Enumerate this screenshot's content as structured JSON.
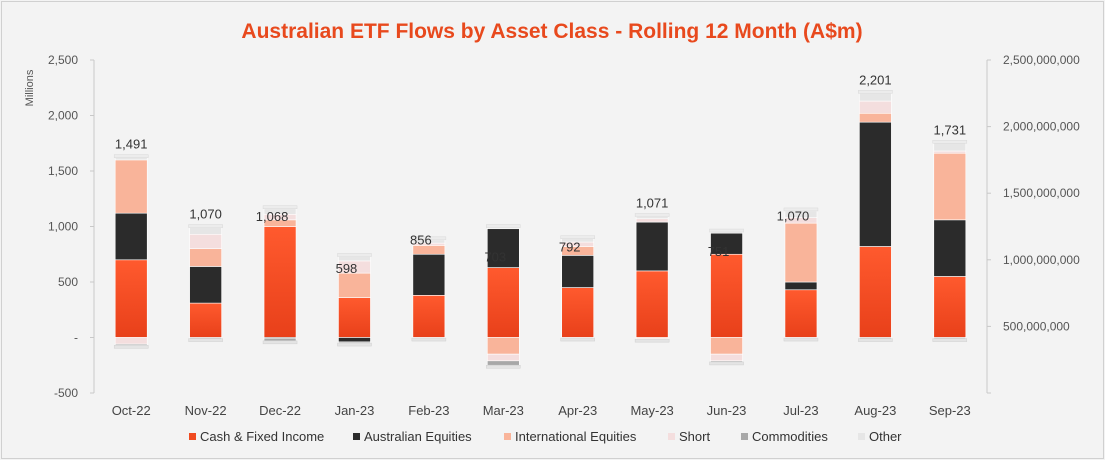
{
  "chart_data": {
    "type": "bar",
    "stacked": true,
    "title": "Australian ETF Flows by Asset Class - Rolling 12 Month (A$m)",
    "ylabel": "Millions",
    "ylim": [
      -500,
      2500
    ],
    "yticks": [
      {
        "value": -500,
        "label": "-500"
      },
      {
        "value": 0,
        "label": "-"
      },
      {
        "value": 500,
        "label": "500"
      },
      {
        "value": 1000,
        "label": "1,000"
      },
      {
        "value": 1500,
        "label": "1,500"
      },
      {
        "value": 2000,
        "label": "2,000"
      },
      {
        "value": 2500,
        "label": "2,500"
      }
    ],
    "y2ticks": [
      {
        "value": 0,
        "label": ""
      },
      {
        "value": 500000000,
        "label": "500,000,000"
      },
      {
        "value": 1000000000,
        "label": "1,000,000,000"
      },
      {
        "value": 1500000000,
        "label": "1,500,000,000"
      },
      {
        "value": 2000000000,
        "label": "2,000,000,000"
      },
      {
        "value": 2500000000,
        "label": "2,500,000,000"
      }
    ],
    "categories": [
      "Oct-22",
      "Nov-22",
      "Dec-22",
      "Jan-23",
      "Feb-23",
      "Mar-23",
      "Apr-23",
      "May-23",
      "Jun-23",
      "Jul-23",
      "Aug-23",
      "Sep-23"
    ],
    "series": [
      {
        "name": "Cash & Fixed Income",
        "color": "#f04a20",
        "values": [
          700,
          310,
          1000,
          360,
          380,
          630,
          450,
          600,
          750,
          430,
          820,
          550
        ]
      },
      {
        "name": "Australian Equities",
        "color": "#2b2b2b",
        "values": [
          420,
          330,
          -10,
          -40,
          370,
          350,
          290,
          440,
          190,
          70,
          1120,
          510
        ]
      },
      {
        "name": "International Equities",
        "color": "#f9b49a",
        "values": [
          480,
          160,
          60,
          220,
          80,
          -150,
          80,
          -10,
          -150,
          530,
          80,
          600
        ]
      },
      {
        "name": "Short",
        "color": "#f4dede",
        "values": [
          -60,
          130,
          50,
          110,
          20,
          -60,
          40,
          30,
          -60,
          50,
          110,
          20
        ]
      },
      {
        "name": "Commodities",
        "color": "#a8a8a8",
        "values": [
          -10,
          -10,
          -20,
          -10,
          -5,
          -40,
          -5,
          -5,
          -10,
          -5,
          -10,
          -10
        ]
      },
      {
        "name": "Other",
        "color": "#e6e6e6",
        "values": [
          20,
          60,
          50,
          40,
          30,
          10,
          30,
          20,
          10,
          60,
          70,
          70
        ]
      }
    ],
    "totals": [
      {
        "value": 1491,
        "label": "1,491",
        "anchor": "top"
      },
      {
        "value": 1070,
        "label": "1,070",
        "anchor": "top"
      },
      {
        "value": 1068,
        "label": "1,068",
        "anchor": "inside"
      },
      {
        "value": 598,
        "label": "598",
        "anchor": "inside"
      },
      {
        "value": 856,
        "label": "856",
        "anchor": "inside"
      },
      {
        "value": 703,
        "label": "703",
        "anchor": "inside"
      },
      {
        "value": 792,
        "label": "792",
        "anchor": "inside"
      },
      {
        "value": 1071,
        "label": "1,071",
        "anchor": "top"
      },
      {
        "value": 751,
        "label": "751",
        "anchor": "inside"
      },
      {
        "value": 1070,
        "label": "1,070",
        "anchor": "inside"
      },
      {
        "value": 2201,
        "label": "2,201",
        "anchor": "top"
      },
      {
        "value": 1731,
        "label": "1,731",
        "anchor": "top"
      }
    ],
    "legend_position": "bottom",
    "title_color": "#e8491d"
  }
}
